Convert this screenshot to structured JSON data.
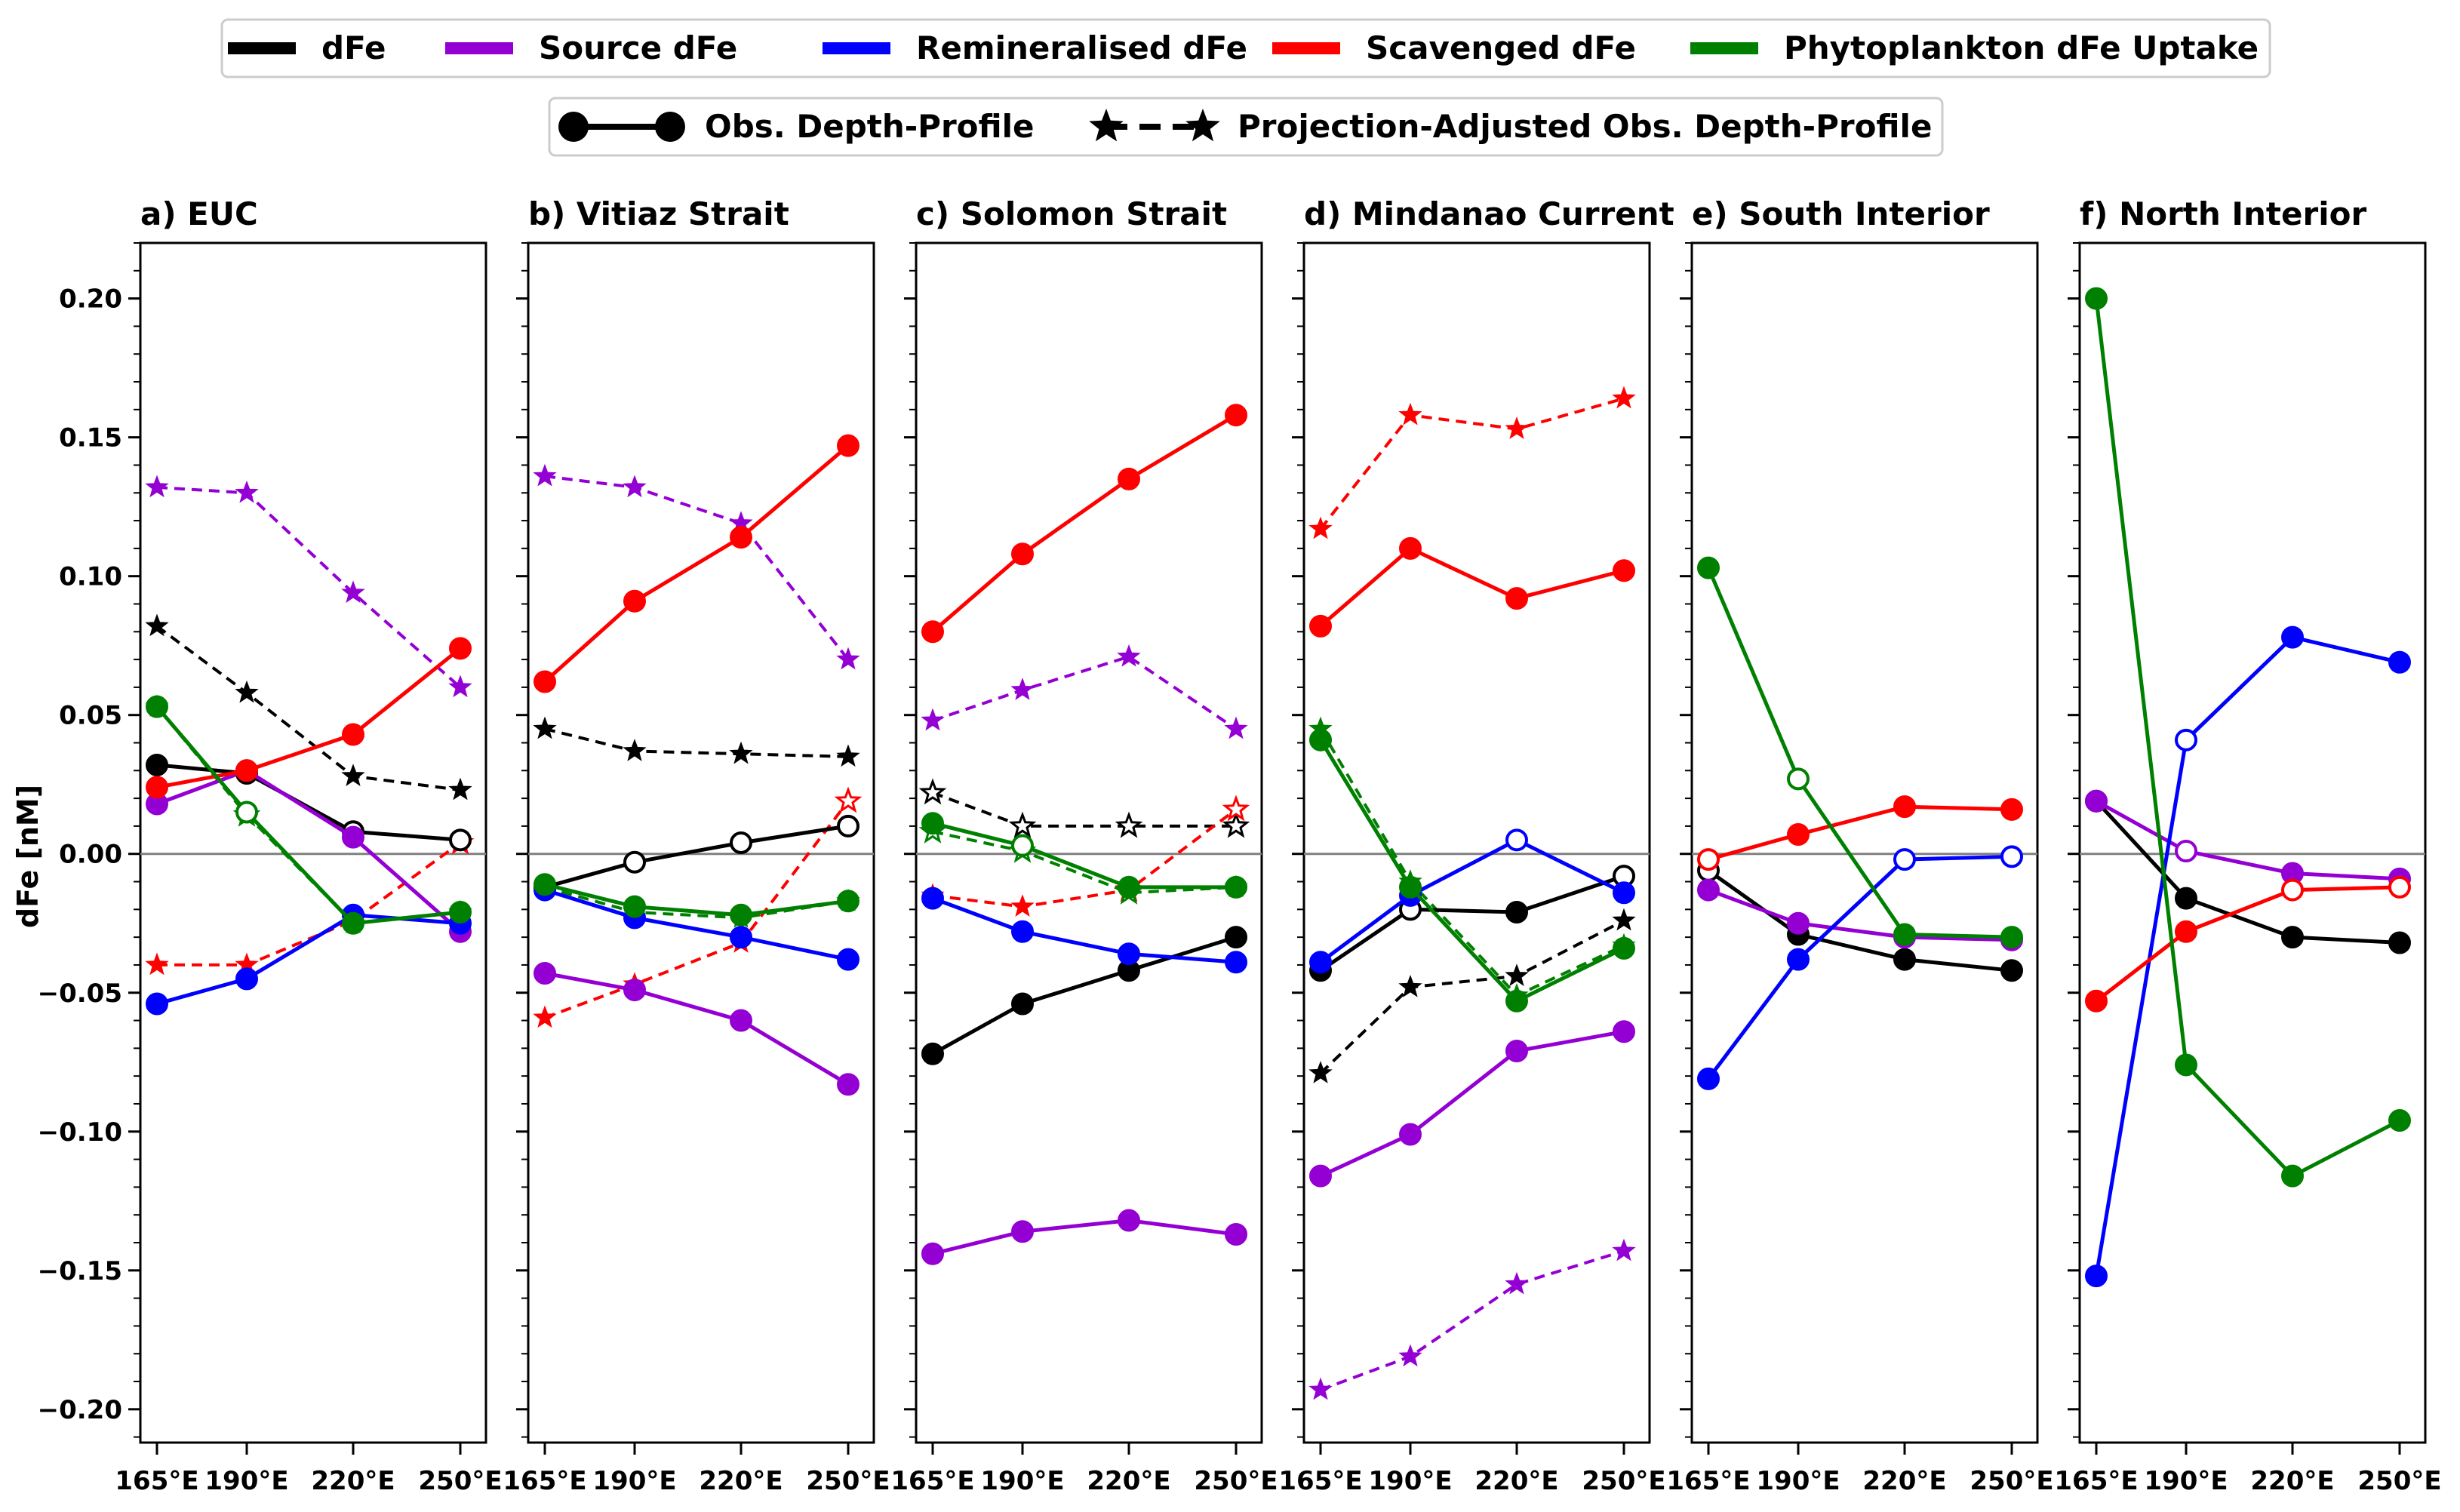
{
  "figure": {
    "ylabel": "dFe [nM]",
    "ylim": [
      -0.212,
      0.22
    ],
    "yticks": [
      "0.20",
      "0.15",
      "0.10",
      "0.05",
      "0.00",
      "−0.05",
      "−0.10",
      "−0.15",
      "−0.20"
    ],
    "xticks": [
      "165°E",
      "190°E",
      "220°E",
      "250°E"
    ]
  },
  "legend": {
    "components": [
      {
        "label": "dFe",
        "color": "#000000"
      },
      {
        "label": "Source dFe",
        "color": "#9400d3"
      },
      {
        "label": "Remineralised dFe",
        "color": "#0000ff"
      },
      {
        "label": "Scavenged dFe",
        "color": "#ff0000"
      },
      {
        "label": "Phytoplankton dFe Uptake",
        "color": "#008000"
      }
    ],
    "styles": [
      {
        "label": "Obs. Depth-Profile"
      },
      {
        "label": "Projection-Adjusted Obs. Depth-Profile"
      }
    ]
  },
  "chart_data": [
    {
      "type": "line",
      "title": "a) EUC",
      "categories": [
        "165°E",
        "190°E",
        "220°E",
        "250°E"
      ],
      "series": [
        {
          "component": "dFe",
          "style": "obs",
          "values": [
            0.032,
            0.029,
            0.008,
            0.005
          ],
          "open": [
            false,
            false,
            true,
            true
          ]
        },
        {
          "component": "Source dFe",
          "style": "obs",
          "values": [
            0.018,
            0.03,
            0.006,
            -0.028
          ],
          "open": [
            false,
            false,
            false,
            false
          ]
        },
        {
          "component": "Remineralised dFe",
          "style": "obs",
          "values": [
            -0.054,
            -0.045,
            -0.022,
            -0.025
          ],
          "open": [
            false,
            false,
            false,
            false
          ]
        },
        {
          "component": "Scavenged dFe",
          "style": "obs",
          "values": [
            0.024,
            0.03,
            0.043,
            0.074
          ],
          "open": [
            false,
            false,
            false,
            false
          ]
        },
        {
          "component": "Phytoplankton dFe Uptake",
          "style": "obs",
          "values": [
            0.053,
            0.015,
            -0.025,
            -0.021
          ],
          "open": [
            false,
            true,
            false,
            false
          ]
        },
        {
          "component": "dFe",
          "style": "adjusted",
          "values": [
            0.082,
            0.058,
            0.028,
            0.023
          ],
          "open": [
            false,
            false,
            false,
            false
          ]
        },
        {
          "component": "Source dFe",
          "style": "adjusted",
          "values": [
            0.132,
            0.13,
            0.094,
            0.06
          ],
          "open": [
            false,
            false,
            false,
            false
          ]
        },
        {
          "component": "Scavenged dFe",
          "style": "adjusted",
          "values": [
            -0.04,
            -0.04,
            -0.024,
            0.004
          ],
          "open": [
            false,
            false,
            false,
            true
          ]
        },
        {
          "component": "Phytoplankton dFe Uptake",
          "style": "adjusted",
          "values": [
            0.053,
            0.014,
            -0.025,
            -0.021
          ],
          "open": [
            false,
            true,
            false,
            false
          ]
        }
      ]
    },
    {
      "type": "line",
      "title": "b) Vitiaz Strait",
      "categories": [
        "165°E",
        "190°E",
        "220°E",
        "250°E"
      ],
      "series": [
        {
          "component": "dFe",
          "style": "obs",
          "values": [
            -0.012,
            -0.003,
            0.004,
            0.01
          ],
          "open": [
            true,
            true,
            true,
            true
          ]
        },
        {
          "component": "Source dFe",
          "style": "obs",
          "values": [
            -0.043,
            -0.049,
            -0.06,
            -0.083
          ],
          "open": [
            false,
            false,
            false,
            false
          ]
        },
        {
          "component": "Remineralised dFe",
          "style": "obs",
          "values": [
            -0.013,
            -0.023,
            -0.03,
            -0.038
          ],
          "open": [
            false,
            false,
            false,
            false
          ]
        },
        {
          "component": "Scavenged dFe",
          "style": "obs",
          "values": [
            0.062,
            0.091,
            0.114,
            0.147
          ],
          "open": [
            false,
            false,
            false,
            false
          ]
        },
        {
          "component": "Phytoplankton dFe Uptake",
          "style": "obs",
          "values": [
            -0.011,
            -0.019,
            -0.022,
            -0.017
          ],
          "open": [
            false,
            false,
            false,
            false
          ]
        },
        {
          "component": "dFe",
          "style": "adjusted",
          "values": [
            0.045,
            0.037,
            0.036,
            0.035
          ],
          "open": [
            false,
            false,
            false,
            false
          ]
        },
        {
          "component": "Source dFe",
          "style": "adjusted",
          "values": [
            0.136,
            0.132,
            0.119,
            0.07
          ],
          "open": [
            false,
            false,
            false,
            false
          ]
        },
        {
          "component": "Scavenged dFe",
          "style": "adjusted",
          "values": [
            -0.059,
            -0.047,
            -0.032,
            0.019
          ],
          "open": [
            false,
            false,
            false,
            true
          ]
        },
        {
          "component": "Phytoplankton dFe Uptake",
          "style": "adjusted",
          "values": [
            -0.012,
            -0.021,
            -0.023,
            -0.017
          ],
          "open": [
            false,
            false,
            false,
            false
          ]
        }
      ]
    },
    {
      "type": "line",
      "title": "c) Solomon Strait",
      "categories": [
        "165°E",
        "190°E",
        "220°E",
        "250°E"
      ],
      "series": [
        {
          "component": "dFe",
          "style": "obs",
          "values": [
            -0.072,
            -0.054,
            -0.042,
            -0.03
          ],
          "open": [
            false,
            false,
            false,
            false
          ]
        },
        {
          "component": "Source dFe",
          "style": "obs",
          "values": [
            -0.144,
            -0.136,
            -0.132,
            -0.137
          ],
          "open": [
            false,
            false,
            false,
            false
          ]
        },
        {
          "component": "Remineralised dFe",
          "style": "obs",
          "values": [
            -0.016,
            -0.028,
            -0.036,
            -0.039
          ],
          "open": [
            false,
            false,
            false,
            false
          ]
        },
        {
          "component": "Scavenged dFe",
          "style": "obs",
          "values": [
            0.08,
            0.108,
            0.135,
            0.158
          ],
          "open": [
            false,
            false,
            false,
            false
          ]
        },
        {
          "component": "Phytoplankton dFe Uptake",
          "style": "obs",
          "values": [
            0.011,
            0.003,
            -0.012,
            -0.012
          ],
          "open": [
            false,
            true,
            false,
            false
          ]
        },
        {
          "component": "dFe",
          "style": "adjusted",
          "values": [
            0.022,
            0.01,
            0.01,
            0.01
          ],
          "open": [
            true,
            true,
            true,
            true
          ]
        },
        {
          "component": "Source dFe",
          "style": "adjusted",
          "values": [
            0.048,
            0.059,
            0.071,
            0.045
          ],
          "open": [
            false,
            false,
            false,
            false
          ]
        },
        {
          "component": "Scavenged dFe",
          "style": "adjusted",
          "values": [
            -0.015,
            -0.019,
            -0.013,
            0.016
          ],
          "open": [
            false,
            false,
            true,
            true
          ]
        },
        {
          "component": "Phytoplankton dFe Uptake",
          "style": "adjusted",
          "values": [
            0.008,
            0.001,
            -0.014,
            -0.012
          ],
          "open": [
            true,
            true,
            true,
            false
          ]
        }
      ]
    },
    {
      "type": "line",
      "title": "d) Mindanao Current",
      "categories": [
        "165°E",
        "190°E",
        "220°E",
        "250°E"
      ],
      "series": [
        {
          "component": "dFe",
          "style": "obs",
          "values": [
            -0.042,
            -0.02,
            -0.021,
            -0.008
          ],
          "open": [
            false,
            true,
            false,
            true
          ]
        },
        {
          "component": "Source dFe",
          "style": "obs",
          "values": [
            -0.116,
            -0.101,
            -0.071,
            -0.064
          ],
          "open": [
            false,
            false,
            false,
            false
          ]
        },
        {
          "component": "Remineralised dFe",
          "style": "obs",
          "values": [
            -0.039,
            -0.015,
            0.005,
            -0.014
          ],
          "open": [
            false,
            false,
            true,
            false
          ]
        },
        {
          "component": "Scavenged dFe",
          "style": "obs",
          "values": [
            0.082,
            0.11,
            0.092,
            0.102
          ],
          "open": [
            false,
            false,
            false,
            false
          ]
        },
        {
          "component": "Phytoplankton dFe Uptake",
          "style": "obs",
          "values": [
            0.041,
            -0.012,
            -0.053,
            -0.034
          ],
          "open": [
            false,
            false,
            false,
            false
          ]
        },
        {
          "component": "dFe",
          "style": "adjusted",
          "values": [
            -0.079,
            -0.048,
            -0.044,
            -0.024
          ],
          "open": [
            false,
            false,
            false,
            false
          ]
        },
        {
          "component": "Source dFe",
          "style": "adjusted",
          "values": [
            -0.193,
            -0.181,
            -0.155,
            -0.143
          ],
          "open": [
            false,
            false,
            false,
            false
          ]
        },
        {
          "component": "Scavenged dFe",
          "style": "adjusted",
          "values": [
            0.117,
            0.158,
            0.153,
            0.164
          ],
          "open": [
            false,
            false,
            false,
            false
          ]
        },
        {
          "component": "Phytoplankton dFe Uptake",
          "style": "adjusted",
          "values": [
            0.045,
            -0.01,
            -0.051,
            -0.033
          ],
          "open": [
            false,
            false,
            false,
            false
          ]
        }
      ]
    },
    {
      "type": "line",
      "title": "e) South Interior",
      "categories": [
        "165°E",
        "190°E",
        "220°E",
        "250°E"
      ],
      "series": [
        {
          "component": "dFe",
          "style": "obs",
          "values": [
            -0.006,
            -0.029,
            -0.038,
            -0.042
          ],
          "open": [
            true,
            false,
            false,
            false
          ]
        },
        {
          "component": "Source dFe",
          "style": "obs",
          "values": [
            -0.013,
            -0.025,
            -0.03,
            -0.031
          ],
          "open": [
            false,
            false,
            false,
            false
          ]
        },
        {
          "component": "Remineralised dFe",
          "style": "obs",
          "values": [
            -0.081,
            -0.038,
            -0.002,
            -0.001
          ],
          "open": [
            false,
            false,
            true,
            true
          ]
        },
        {
          "component": "Scavenged dFe",
          "style": "obs",
          "values": [
            -0.002,
            0.007,
            0.017,
            0.016
          ],
          "open": [
            true,
            false,
            false,
            false
          ]
        },
        {
          "component": "Phytoplankton dFe Uptake",
          "style": "obs",
          "values": [
            0.103,
            0.027,
            -0.029,
            -0.03
          ],
          "open": [
            false,
            true,
            false,
            false
          ]
        }
      ]
    },
    {
      "type": "line",
      "title": "f) North Interior",
      "categories": [
        "165°E",
        "190°E",
        "220°E",
        "250°E"
      ],
      "series": [
        {
          "component": "dFe",
          "style": "obs",
          "values": [
            0.019,
            -0.016,
            -0.03,
            -0.032
          ],
          "open": [
            false,
            false,
            false,
            false
          ]
        },
        {
          "component": "Source dFe",
          "style": "obs",
          "values": [
            0.019,
            0.001,
            -0.007,
            -0.009
          ],
          "open": [
            false,
            true,
            false,
            false
          ]
        },
        {
          "component": "Remineralised dFe",
          "style": "obs",
          "values": [
            -0.152,
            0.041,
            0.078,
            0.069
          ],
          "open": [
            false,
            true,
            false,
            false
          ]
        },
        {
          "component": "Scavenged dFe",
          "style": "obs",
          "values": [
            -0.053,
            -0.028,
            -0.013,
            -0.012
          ],
          "open": [
            false,
            false,
            true,
            true
          ]
        },
        {
          "component": "Phytoplankton dFe Uptake",
          "style": "obs",
          "values": [
            0.2,
            -0.076,
            -0.116,
            -0.096
          ],
          "open": [
            false,
            false,
            false,
            false
          ]
        }
      ]
    }
  ]
}
